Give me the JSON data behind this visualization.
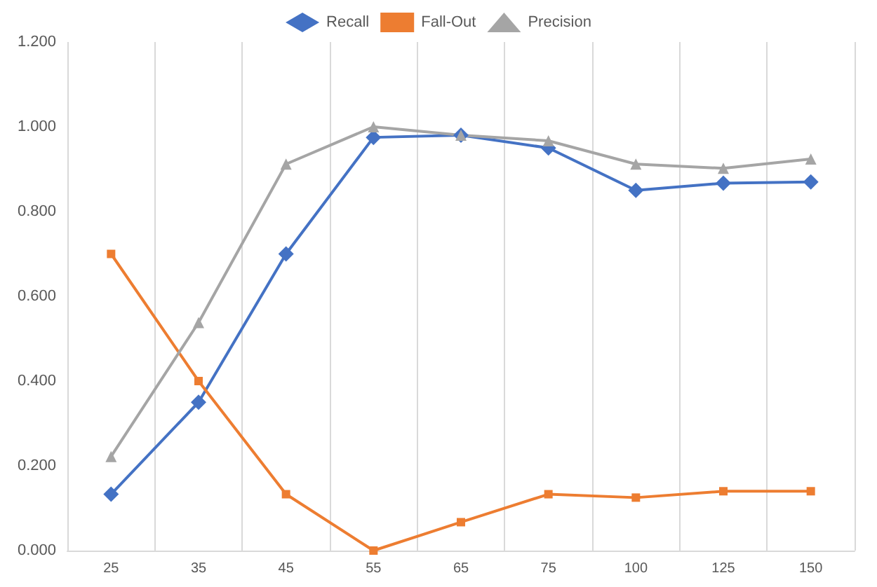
{
  "chart_data": {
    "type": "line",
    "categories": [
      "25",
      "35",
      "45",
      "55",
      "65",
      "75",
      "100",
      "125",
      "150"
    ],
    "series": [
      {
        "name": "Recall",
        "color": "#4472c4",
        "marker": "diamond",
        "values": [
          0.133,
          0.35,
          0.7,
          0.975,
          0.98,
          0.95,
          0.85,
          0.867,
          0.87
        ]
      },
      {
        "name": "Fall-Out",
        "color": "#ed7d31",
        "marker": "square",
        "values": [
          0.7,
          0.4,
          0.133,
          0.0,
          0.067,
          0.133,
          0.125,
          0.14,
          0.14
        ]
      },
      {
        "name": "Precision",
        "color": "#a5a5a5",
        "marker": "triangle",
        "values": [
          0.222,
          0.538,
          0.912,
          1.0,
          0.98,
          0.967,
          0.912,
          0.902,
          0.924
        ]
      }
    ],
    "ylim": [
      0,
      1.2
    ],
    "yticks": [
      {
        "value": 0,
        "label": "0.000"
      },
      {
        "value": 0.2,
        "label": "0.200"
      },
      {
        "value": 0.4,
        "label": "0.400"
      },
      {
        "value": 0.6,
        "label": "0.600"
      },
      {
        "value": 0.8,
        "label": "0.800"
      },
      {
        "value": 1,
        "label": "1.000"
      },
      {
        "value": 1.2,
        "label": "1.200"
      }
    ],
    "grid": "x",
    "legend": "top",
    "line_style": "solid"
  }
}
